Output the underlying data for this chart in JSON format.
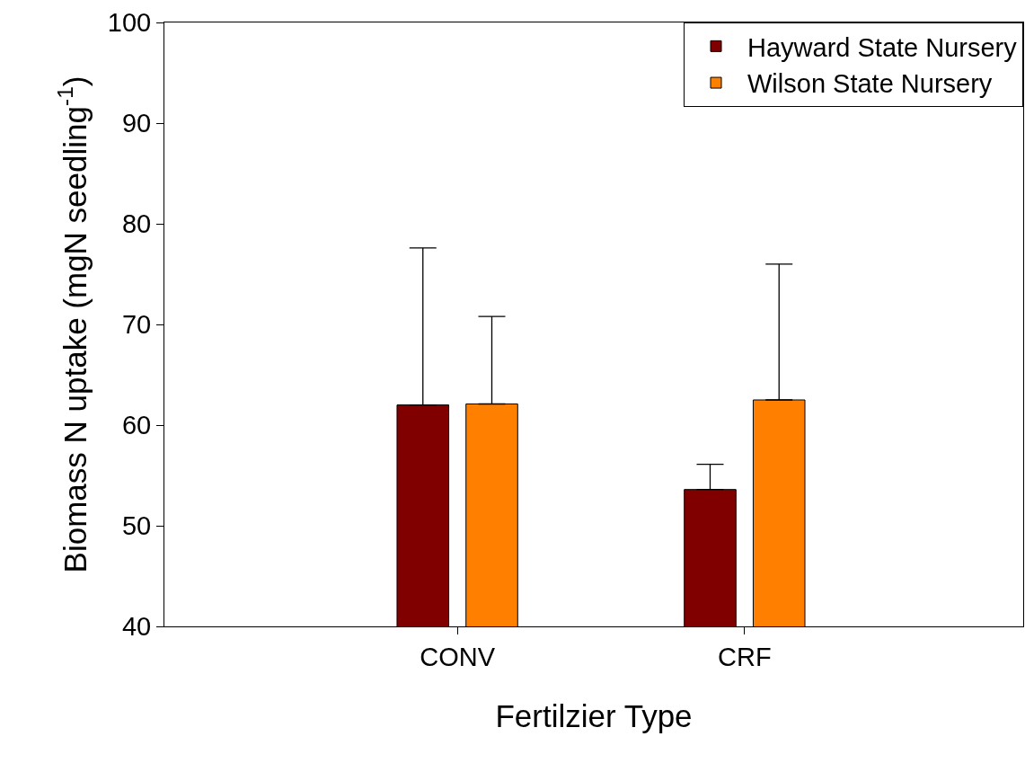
{
  "chart_data": {
    "type": "bar",
    "xlabel": "Fertilzier Type",
    "ylabel": "Biomass N uptake (mgN seedling$^{-1}$)",
    "categories": [
      "CONV",
      "CRF"
    ],
    "series": [
      {
        "name": "Hayward State Nursery",
        "color": "#800000",
        "values": [
          62.0,
          53.6
        ],
        "errors": [
          [
            62.0,
            77.6
          ],
          [
            53.6,
            56.1
          ]
        ]
      },
      {
        "name": "Wilson State Nursery",
        "color": "#ff8000",
        "values": [
          62.1,
          62.5
        ],
        "errors": [
          [
            62.1,
            70.8
          ],
          [
            62.5,
            76.0
          ]
        ]
      }
    ],
    "ylim": [
      40,
      100
    ],
    "yticks": [
      40,
      50,
      60,
      70,
      80,
      90,
      100
    ],
    "legend": "top right"
  }
}
